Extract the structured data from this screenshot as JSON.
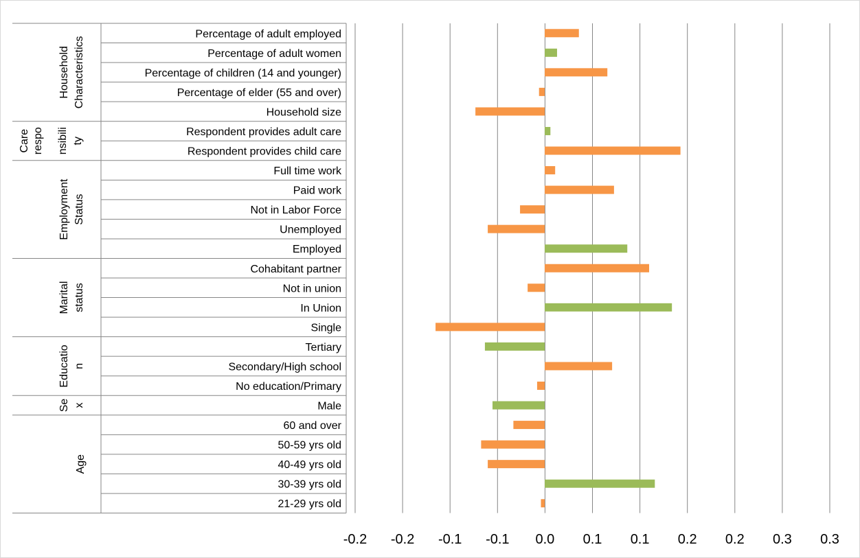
{
  "chart_data": {
    "type": "bar",
    "orientation": "horizontal",
    "title": "",
    "xlabel": "",
    "ylabel": "",
    "xlim": [
      -0.225,
      0.3
    ],
    "grid": true,
    "legend": "none",
    "colors": {
      "increase": "#F79646",
      "decrease": "#9BBB59"
    },
    "tick_labels": [
      "-0.2",
      "-0.2",
      "-0.1",
      "-0.1",
      "0.0",
      "0.1",
      "0.1",
      "0.2",
      "0.2",
      "0.3",
      "0.3"
    ],
    "groups": [
      {
        "name": [
          "Household",
          "Characteristics"
        ],
        "first": 0,
        "count": 5
      },
      {
        "name": [
          "Care",
          "responsibili",
          "ty"
        ],
        "first": 5,
        "count": 2,
        "columns": [
          [
            "Care",
            "respo"
          ],
          [
            "nsibili",
            "ty"
          ]
        ]
      },
      {
        "name": [
          "Employment",
          "Status"
        ],
        "first": 7,
        "count": 5
      },
      {
        "name": [
          "Marital",
          "status"
        ],
        "first": 12,
        "count": 4
      },
      {
        "name": [
          "Educatio",
          "n"
        ],
        "first": 16,
        "count": 3
      },
      {
        "name": [
          "Se",
          "x"
        ],
        "first": 19,
        "count": 1
      },
      {
        "name": [
          "Age"
        ],
        "first": 20,
        "count": 5
      }
    ],
    "categories": [
      "Percentage of adult employed",
      "Percentage of adult women",
      "Percentage of children (14 and younger)",
      "Percentage of elder (55 and over)",
      "Household size",
      "Respondent provides adult care",
      "Respondent provides child care",
      "Full time work",
      "Paid work",
      "Not in Labor Force",
      "Unemployed",
      "Employed",
      "Cohabitant partner",
      "Not in union",
      "In Union",
      "Single",
      "Tertiary",
      "Secondary/High school",
      "No education/Primary",
      "Male",
      "60 and over",
      "50-59 yrs old",
      "40-49 yrs old",
      "30-39 yrs old",
      "21-29 yrs old"
    ],
    "values": [
      0.036,
      0.013,
      0.066,
      -0.006,
      -0.073,
      0.006,
      0.143,
      0.011,
      0.073,
      -0.026,
      -0.06,
      0.087,
      0.11,
      -0.018,
      0.134,
      -0.115,
      -0.063,
      0.071,
      -0.008,
      -0.055,
      -0.033,
      -0.067,
      -0.06,
      0.116,
      -0.004
    ],
    "bar_colors": [
      "increase",
      "decrease",
      "increase",
      "increase",
      "increase",
      "decrease",
      "increase",
      "increase",
      "increase",
      "increase",
      "increase",
      "decrease",
      "increase",
      "increase",
      "decrease",
      "increase",
      "decrease",
      "increase",
      "increase",
      "decrease",
      "increase",
      "increase",
      "increase",
      "decrease",
      "increase"
    ]
  }
}
